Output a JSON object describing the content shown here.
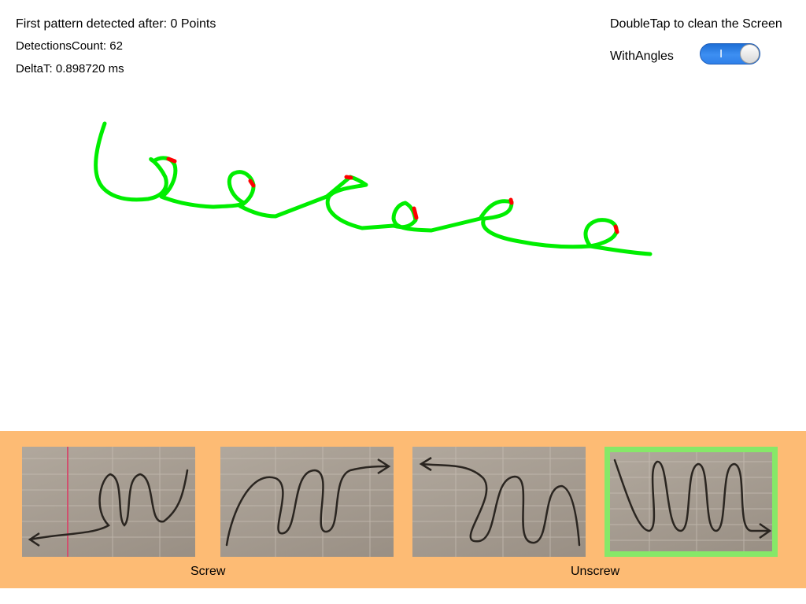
{
  "status": {
    "first_pattern": "First pattern detected after: 0 Points",
    "detections_count": "DetectionsCount: 62",
    "delta_t": "DeltaT: 0.898720 ms"
  },
  "controls": {
    "clean_hint": "DoubleTap to clean the Screen",
    "with_angles_label": "WithAngles",
    "with_angles_state": "I",
    "with_angles_on": true
  },
  "colors": {
    "stroke": "#00ee00",
    "angle_marker": "#ff0000",
    "panel_bg": "#fdbb74",
    "selected_border": "#86e868",
    "toggle_on": "#2f80e9"
  },
  "patterns": {
    "groups": [
      {
        "label": "Screw"
      },
      {
        "label": "Unscrew"
      }
    ],
    "thumbnails": [
      {
        "name": "screw-left-arrow",
        "icon": "spiral-arrow-left-icon",
        "selected": false
      },
      {
        "name": "screw-right-arrow",
        "icon": "spiral-arrow-right-icon",
        "selected": false
      },
      {
        "name": "unscrew-left-arrow",
        "icon": "spiral-arrow-left-icon",
        "selected": false
      },
      {
        "name": "unscrew-right-arrow",
        "icon": "loops-arrow-right-icon",
        "selected": true
      }
    ]
  }
}
